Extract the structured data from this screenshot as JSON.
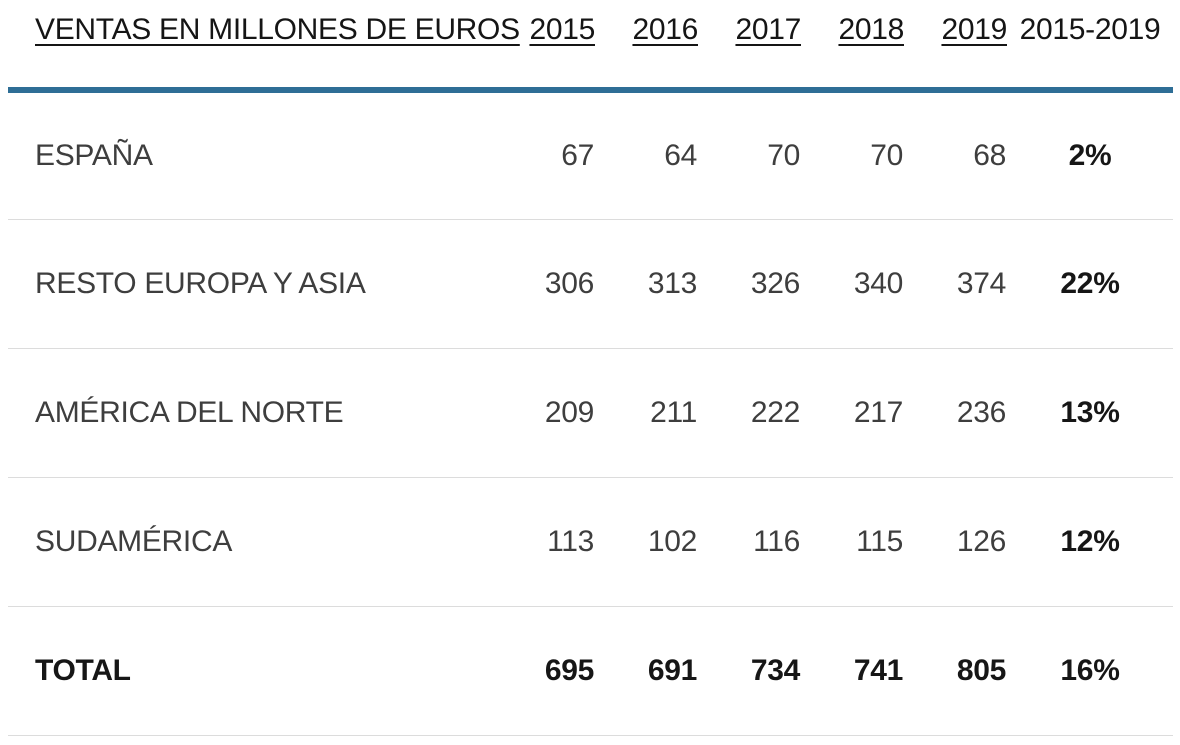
{
  "colors": {
    "header_rule": "#2e6e96",
    "row_divider": "#dcdcdc",
    "body_text": "#3e3e3e",
    "strong_text": "#161616"
  },
  "table": {
    "title": "VENTAS EN MILLONES DE EUROS",
    "year_headers": [
      "2015",
      "2016",
      "2017",
      "2018",
      "2019"
    ],
    "range_header": "2015-2019",
    "rows": [
      {
        "label": "ESPAÑA",
        "values": [
          "67",
          "64",
          "70",
          "70",
          "68"
        ],
        "change": "2%",
        "is_total": false
      },
      {
        "label": "RESTO EUROPA Y ASIA",
        "values": [
          "306",
          "313",
          "326",
          "340",
          "374"
        ],
        "change": "22%",
        "is_total": false
      },
      {
        "label": "AMÉRICA DEL NORTE",
        "values": [
          "209",
          "211",
          "222",
          "217",
          "236"
        ],
        "change": "13%",
        "is_total": false
      },
      {
        "label": "SUDAMÉRICA",
        "values": [
          "113",
          "102",
          "116",
          "115",
          "126"
        ],
        "change": "12%",
        "is_total": false
      },
      {
        "label": "TOTAL",
        "values": [
          "695",
          "691",
          "734",
          "741",
          "805"
        ],
        "change": "16%",
        "is_total": true
      }
    ]
  },
  "chart_data": {
    "type": "table",
    "title": "VENTAS EN MILLONES DE EUROS",
    "columns": [
      "2015",
      "2016",
      "2017",
      "2018",
      "2019",
      "2015-2019"
    ],
    "categories": [
      2015,
      2016,
      2017,
      2018,
      2019
    ],
    "series": [
      {
        "name": "ESPAÑA",
        "values": [
          67,
          64,
          70,
          70,
          68
        ],
        "change_2015_2019": "2%"
      },
      {
        "name": "RESTO EUROPA Y ASIA",
        "values": [
          306,
          313,
          326,
          340,
          374
        ],
        "change_2015_2019": "22%"
      },
      {
        "name": "AMÉRICA DEL NORTE",
        "values": [
          209,
          211,
          222,
          217,
          236
        ],
        "change_2015_2019": "13%"
      },
      {
        "name": "SUDAMÉRICA",
        "values": [
          113,
          102,
          116,
          115,
          126
        ],
        "change_2015_2019": "12%"
      },
      {
        "name": "TOTAL",
        "values": [
          695,
          691,
          734,
          741,
          805
        ],
        "change_2015_2019": "16%"
      }
    ],
    "units": "millions of euros",
    "notes": "Last column is percent growth 2015-2019; TOTAL row and change column are bold"
  }
}
